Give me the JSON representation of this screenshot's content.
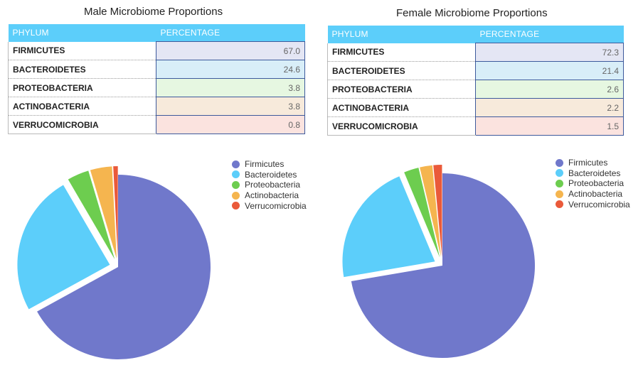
{
  "colors": {
    "Firmicutes": "#7078cb",
    "Bacteroidetes": "#5ccefa",
    "Proteobacteria": "#6dcd4f",
    "Actinobacteria": "#f5b54f",
    "Verrucomicrobia": "#ea5a3a",
    "table_bg": [
      "#e4e6f4",
      "#d8eef8",
      "#e6f7e1",
      "#f7eadb",
      "#fbe3df"
    ]
  },
  "chart_data": [
    {
      "type": "pie",
      "title": "Male Microbiome Proportions",
      "table_headers": [
        "PHYLUM",
        "PERCENTAGE"
      ],
      "rows": [
        {
          "phylum": "FIRMICUTES",
          "percentage": "67.0"
        },
        {
          "phylum": "BACTEROIDETES",
          "percentage": "24.6"
        },
        {
          "phylum": "PROTEOBACTERIA",
          "percentage": "3.8"
        },
        {
          "phylum": "ACTINOBACTERIA",
          "percentage": "3.8"
        },
        {
          "phylum": "VERRUCOMICROBIA",
          "percentage": "0.8"
        }
      ],
      "legend": [
        "Firmicutes",
        "Bacteroidetes",
        "Proteobacteria",
        "Actinobacteria",
        "Verrucomicrobia"
      ],
      "values": [
        67.0,
        24.6,
        3.8,
        3.8,
        0.8
      ],
      "legend_position": "right"
    },
    {
      "type": "pie",
      "title": "Female Microbiome Proportions",
      "table_headers": [
        "PHYLUM",
        "PERCENTAGE"
      ],
      "rows": [
        {
          "phylum": "FIRMICUTES",
          "percentage": "72.3"
        },
        {
          "phylum": "BACTEROIDETES",
          "percentage": "21.4"
        },
        {
          "phylum": "PROTEOBACTERIA",
          "percentage": "2.6"
        },
        {
          "phylum": "ACTINOBACTERIA",
          "percentage": "2.2"
        },
        {
          "phylum": "VERRUCOMICROBIA",
          "percentage": "1.5"
        }
      ],
      "legend": [
        "Firmicutes",
        "Bacteroidetes",
        "Proteobacteria",
        "Actinobacteria",
        "Verrucomicrobia"
      ],
      "values": [
        72.3,
        21.4,
        2.6,
        2.2,
        1.5
      ],
      "legend_position": "right"
    }
  ]
}
